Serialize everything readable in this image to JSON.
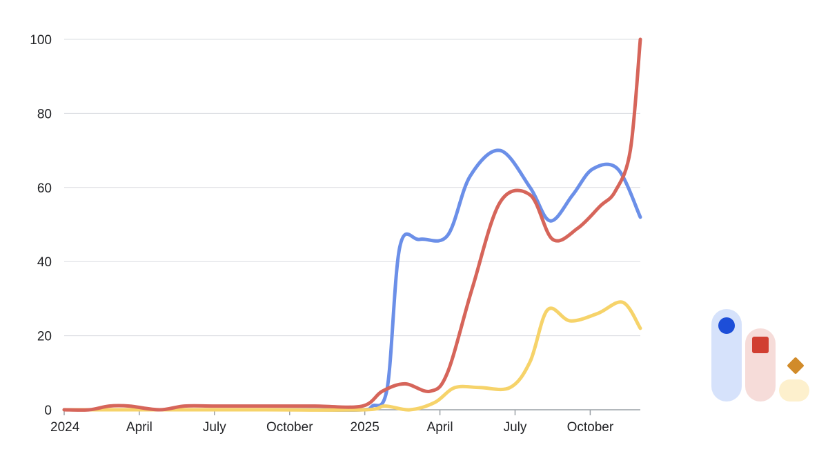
{
  "chart_data": {
    "type": "line",
    "title": "",
    "xlabel": "",
    "ylabel": "",
    "ylim": [
      0,
      100
    ],
    "yticks": [
      0,
      20,
      40,
      60,
      80,
      100
    ],
    "xlim": [
      0,
      23
    ],
    "xticks": [
      {
        "label": "2024",
        "x": 0
      },
      {
        "label": "April",
        "x": 3
      },
      {
        "label": "July",
        "x": 6
      },
      {
        "label": "October",
        "x": 9
      },
      {
        "label": "2025",
        "x": 12
      },
      {
        "label": "April",
        "x": 15
      },
      {
        "label": "July",
        "x": 18
      },
      {
        "label": "October",
        "x": 21
      }
    ],
    "grid": true,
    "legend": "none",
    "series": [
      {
        "color": "#6b8fe8",
        "points": [
          [
            0,
            0
          ],
          [
            2,
            0
          ],
          [
            4,
            0
          ],
          [
            6,
            0
          ],
          [
            8,
            0
          ],
          [
            10,
            0
          ],
          [
            11.9,
            0
          ],
          [
            12.3,
            1
          ],
          [
            12.9,
            6
          ],
          [
            13.4,
            44
          ],
          [
            14.2,
            46
          ],
          [
            15.3,
            47
          ],
          [
            16.2,
            63
          ],
          [
            17.4,
            70
          ],
          [
            18.6,
            60
          ],
          [
            19.4,
            51
          ],
          [
            20.3,
            58
          ],
          [
            21.1,
            65
          ],
          [
            22.1,
            65
          ],
          [
            23,
            52
          ]
        ]
      },
      {
        "color": "#d6655a",
        "points": [
          [
            0,
            0
          ],
          [
            1,
            0
          ],
          [
            1.8,
            1
          ],
          [
            2.6,
            1
          ],
          [
            3.8,
            0
          ],
          [
            4.8,
            1
          ],
          [
            6,
            1
          ],
          [
            8,
            1
          ],
          [
            10,
            1
          ],
          [
            11.9,
            1
          ],
          [
            12.7,
            5
          ],
          [
            13.6,
            7
          ],
          [
            14.6,
            5
          ],
          [
            15.3,
            10
          ],
          [
            16.3,
            33
          ],
          [
            17.4,
            56
          ],
          [
            18.6,
            58
          ],
          [
            19.5,
            46
          ],
          [
            20.5,
            49
          ],
          [
            21.4,
            55
          ],
          [
            22,
            59
          ],
          [
            22.6,
            70
          ],
          [
            23,
            100
          ]
        ]
      },
      {
        "color": "#f6d36a",
        "points": [
          [
            0,
            0
          ],
          [
            4,
            0
          ],
          [
            8,
            0
          ],
          [
            12,
            0
          ],
          [
            12.8,
            1
          ],
          [
            13.8,
            0
          ],
          [
            14.8,
            2
          ],
          [
            15.6,
            6
          ],
          [
            16.6,
            6
          ],
          [
            17.8,
            6
          ],
          [
            18.6,
            13
          ],
          [
            19.3,
            27
          ],
          [
            20.2,
            24
          ],
          [
            21.3,
            26
          ],
          [
            22.3,
            29
          ],
          [
            23,
            22
          ]
        ]
      }
    ]
  },
  "legend_widget": {
    "colors": {
      "pill1": "#d6e2fb",
      "dot1": "#1d4ed8",
      "pill2": "#f6dcd9",
      "dot2": "#d13f32",
      "pill3": "#fdf0cd",
      "dot3": "#d18b2a"
    },
    "icons": [
      "circle-icon",
      "square-icon",
      "diamond-icon"
    ]
  }
}
